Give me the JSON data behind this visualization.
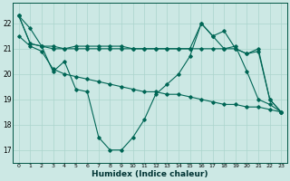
{
  "title": "",
  "xlabel": "Humidex (Indice chaleur)",
  "ylabel": "",
  "background_color": "#cce8e4",
  "grid_color": "#aad4cc",
  "line_color": "#006655",
  "x": [
    0,
    1,
    2,
    3,
    4,
    5,
    6,
    7,
    8,
    9,
    10,
    11,
    12,
    13,
    14,
    15,
    16,
    17,
    18,
    19,
    20,
    21,
    22,
    23
  ],
  "series_wavy": [
    22.3,
    21.8,
    21.1,
    20.1,
    20.5,
    19.4,
    19.3,
    17.5,
    17.0,
    17.0,
    17.5,
    18.2,
    19.2,
    19.6,
    20.0,
    20.7,
    22.0,
    21.5,
    21.0,
    21.1,
    20.1,
    19.0,
    18.8,
    18.5
  ],
  "series_flat1": [
    22.3,
    21.2,
    21.1,
    21.1,
    21.0,
    21.0,
    21.0,
    21.0,
    21.0,
    21.0,
    21.0,
    21.0,
    21.0,
    21.0,
    21.0,
    21.0,
    21.0,
    21.0,
    21.0,
    21.0,
    20.8,
    20.9,
    19.0,
    18.5
  ],
  "series_flat2": [
    22.3,
    21.2,
    21.1,
    21.0,
    21.0,
    21.1,
    21.1,
    21.1,
    21.1,
    21.1,
    21.0,
    21.0,
    21.0,
    21.0,
    21.0,
    21.0,
    22.0,
    21.5,
    21.7,
    21.0,
    20.8,
    21.0,
    19.0,
    18.5
  ],
  "series_diag": [
    21.5,
    21.1,
    20.9,
    20.2,
    20.0,
    19.9,
    19.8,
    19.7,
    19.6,
    19.5,
    19.4,
    19.3,
    19.3,
    19.2,
    19.2,
    19.1,
    19.0,
    18.9,
    18.8,
    18.8,
    18.7,
    18.7,
    18.6,
    18.5
  ],
  "ylim": [
    16.5,
    22.8
  ],
  "yticks": [
    17,
    18,
    19,
    20,
    21,
    22
  ],
  "xticks": [
    0,
    1,
    2,
    3,
    4,
    5,
    6,
    7,
    8,
    9,
    10,
    11,
    12,
    13,
    14,
    15,
    16,
    17,
    18,
    19,
    20,
    21,
    22,
    23
  ]
}
